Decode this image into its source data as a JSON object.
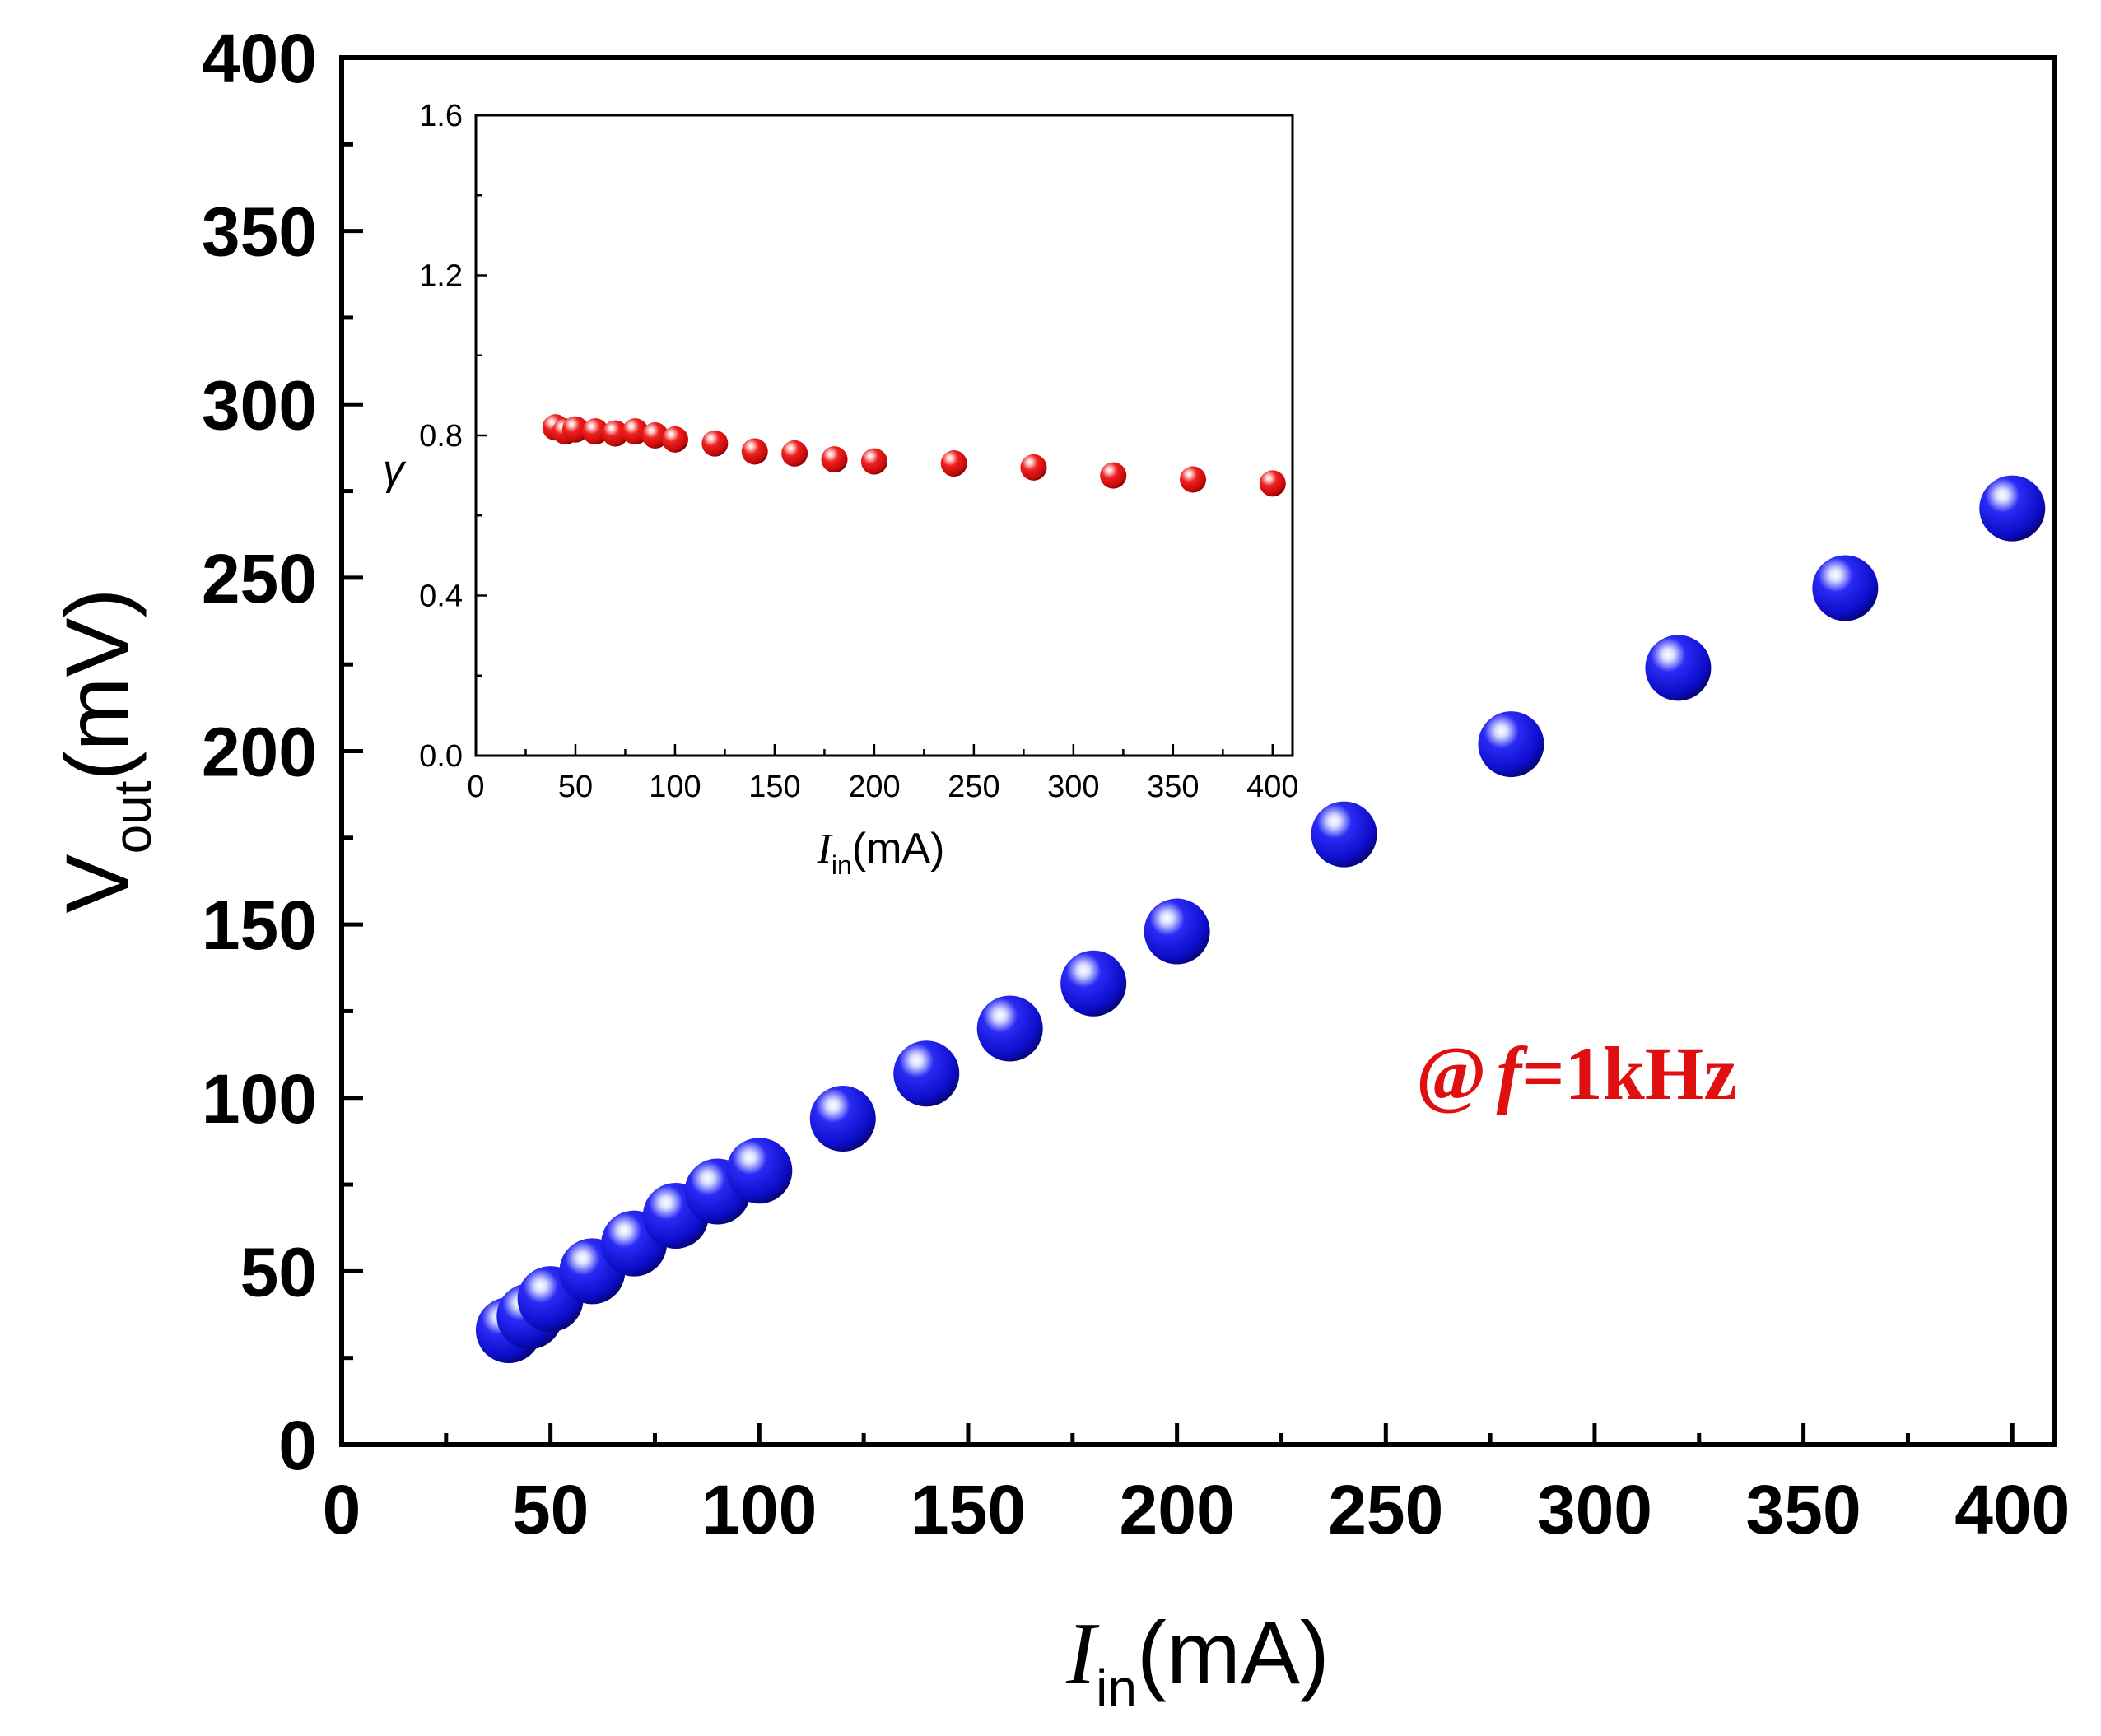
{
  "chart_data": [
    {
      "type": "scatter",
      "name": "main",
      "xlabel": {
        "var": "I",
        "sub": "in",
        "unit": "(mA)"
      },
      "ylabel": {
        "var": "V",
        "sub": "out",
        "unit": "(mV)"
      },
      "xlim": [
        0,
        410
      ],
      "ylim": [
        0,
        400
      ],
      "xticks": [
        "0",
        "50",
        "100",
        "150",
        "200",
        "250",
        "300",
        "350",
        "400"
      ],
      "yticks": [
        "0",
        "50",
        "100",
        "150",
        "200",
        "250",
        "300",
        "350",
        "400"
      ],
      "annotation": {
        "at": "@",
        "var": "f",
        "rest": "=1kHz"
      },
      "series": [
        {
          "name": "Vout",
          "marker_color": "#1010e0",
          "x": [
            40,
            45,
            50,
            60,
            70,
            80,
            90,
            100,
            120,
            140,
            160,
            180,
            200,
            240,
            280,
            320,
            360,
            400
          ],
          "y": [
            33,
            37,
            42,
            50,
            58,
            66,
            73,
            79,
            94,
            107,
            120,
            133,
            148,
            176,
            202,
            224,
            247,
            270
          ]
        }
      ]
    },
    {
      "type": "scatter",
      "name": "inset",
      "xlabel": {
        "var": "I",
        "sub": "in",
        "unit": "(mA)"
      },
      "ylabel": {
        "var": "γ"
      },
      "xlim": [
        0,
        410
      ],
      "ylim": [
        0,
        1.6
      ],
      "xticks": [
        "0",
        "50",
        "100",
        "150",
        "200",
        "250",
        "300",
        "350",
        "400"
      ],
      "yticks": [
        "0.0",
        "0.4",
        "0.8",
        "1.2",
        "1.6"
      ],
      "series": [
        {
          "name": "gamma",
          "marker_color": "#e01010",
          "x": [
            40,
            45,
            50,
            60,
            70,
            80,
            90,
            100,
            120,
            140,
            160,
            180,
            200,
            240,
            280,
            320,
            360,
            400
          ],
          "y": [
            0.82,
            0.81,
            0.815,
            0.81,
            0.805,
            0.81,
            0.8,
            0.79,
            0.78,
            0.76,
            0.755,
            0.74,
            0.735,
            0.73,
            0.72,
            0.7,
            0.69,
            0.68
          ]
        }
      ]
    }
  ]
}
